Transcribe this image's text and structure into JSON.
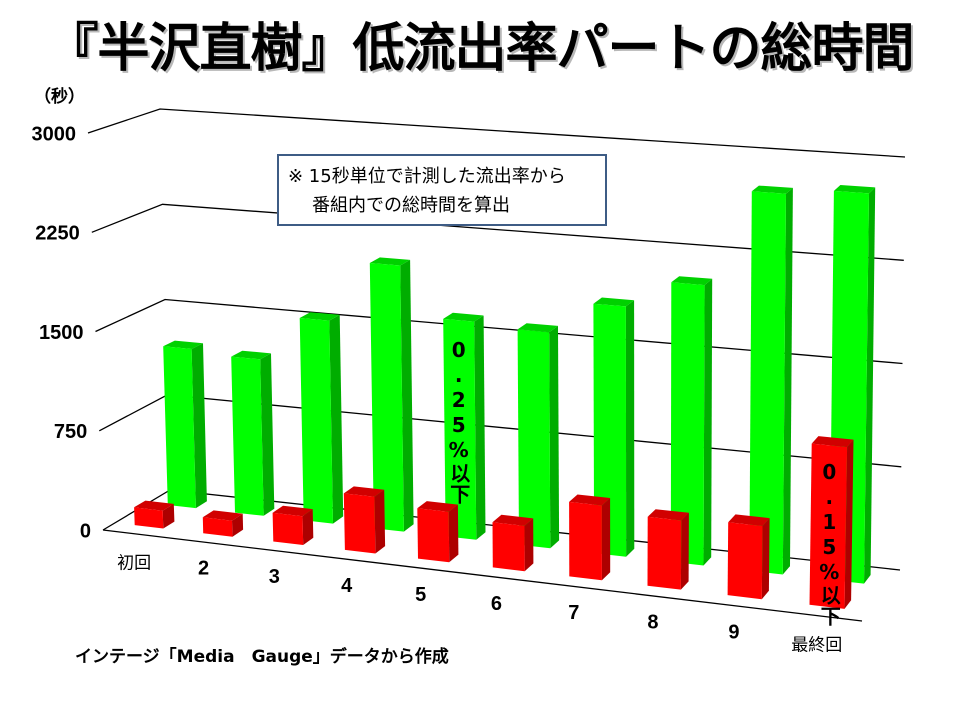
{
  "note": {
    "line1": "※ 15秒単位で計測した流出率から",
    "line2": "番組内での総時間を算出"
  },
  "source": "インテージ「Media　Gauge」データから作成",
  "chart_data": {
    "type": "bar",
    "variant": "3d-bar-with-depth",
    "title": "『半沢直樹』低流出率パートの総時間",
    "xlabel": "",
    "ylabel": "（秒）",
    "ylim": [
      0,
      3000
    ],
    "yticks": [
      0,
      750,
      1500,
      2250,
      3000
    ],
    "ytick_labels": [
      "0",
      "750",
      "1500",
      "2250",
      "3000"
    ],
    "grid": true,
    "legend": "none",
    "categories": [
      "初回",
      "2",
      "3",
      "4",
      "5",
      "6",
      "7",
      "8",
      "9",
      "最終回"
    ],
    "series": [
      {
        "name": "0.25%以下",
        "color": "#00FF00",
        "row": "back",
        "values": [
          1230,
          1200,
          1545,
          2010,
          1635,
          1605,
          1845,
          2050,
          2760,
          2805
        ]
      },
      {
        "name": "0.15%以下",
        "color": "#FF0000",
        "row": "front",
        "values": [
          135,
          120,
          215,
          420,
          370,
          330,
          540,
          495,
          520,
          1140
        ]
      }
    ],
    "annotations": [
      {
        "series": 0,
        "category_index": 4,
        "text_from": "series_name"
      },
      {
        "series": 1,
        "category_index": 9,
        "text_from": "series_name"
      }
    ]
  }
}
